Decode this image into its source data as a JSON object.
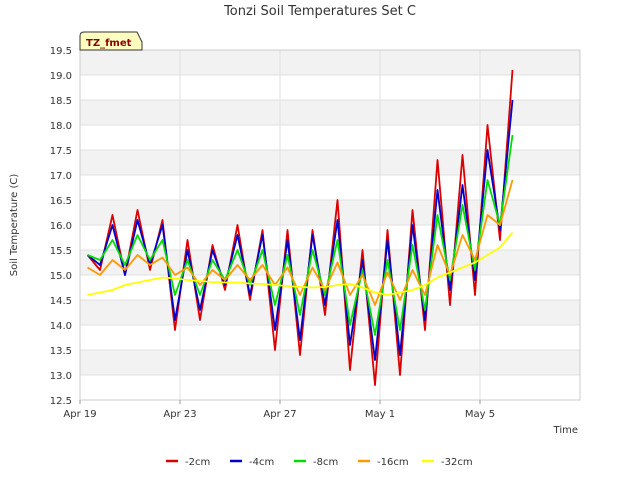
{
  "chart_data": {
    "type": "line",
    "title": "Tonzi Soil Temperatures Set C",
    "xlabel": "Time",
    "ylabel": "Soil Temperature (C)",
    "site_label": "TZ_fmet",
    "xlim": [
      0,
      20
    ],
    "ylim": [
      12.5,
      19.5
    ],
    "yticks": [
      12.5,
      13.0,
      13.5,
      14.0,
      14.5,
      15.0,
      15.5,
      16.0,
      16.5,
      17.0,
      17.5,
      18.0,
      18.5,
      19.0,
      19.5
    ],
    "ytick_labels": [
      "12.5",
      "13.0",
      "13.5",
      "14.0",
      "14.5",
      "15.0",
      "15.5",
      "16.0",
      "16.5",
      "17.0",
      "17.5",
      "18.0",
      "18.5",
      "19.0",
      "19.5"
    ],
    "xticks": [
      0,
      4,
      8,
      12,
      16
    ],
    "xtick_labels": [
      "Apr 19",
      "Apr 23",
      "Apr 27",
      "May 1",
      "May 5"
    ],
    "grid": true,
    "legend_position": "bottom",
    "x": [
      0.3,
      0.8,
      1.3,
      1.8,
      2.3,
      2.8,
      3.3,
      3.8,
      4.3,
      4.8,
      5.3,
      5.8,
      6.3,
      6.8,
      7.3,
      7.8,
      8.3,
      8.8,
      9.3,
      9.8,
      10.3,
      10.8,
      11.3,
      11.8,
      12.3,
      12.8,
      13.3,
      13.8,
      14.3,
      14.8,
      15.3,
      15.8,
      16.3,
      16.8,
      17.3
    ],
    "series": [
      {
        "name": "-2cm",
        "color": "#dd0000",
        "values": [
          15.4,
          15.1,
          16.2,
          15.0,
          16.3,
          15.1,
          16.1,
          13.9,
          15.7,
          14.1,
          15.6,
          14.7,
          16.0,
          14.5,
          15.9,
          13.5,
          15.9,
          13.4,
          15.9,
          14.2,
          16.5,
          13.1,
          15.5,
          12.8,
          15.9,
          13.0,
          16.3,
          13.9,
          17.3,
          14.4,
          17.4,
          14.6,
          18.0,
          15.7,
          19.1
        ]
      },
      {
        "name": "-4cm",
        "color": "#0000cc",
        "values": [
          15.4,
          15.2,
          16.0,
          15.0,
          16.1,
          15.2,
          16.0,
          14.1,
          15.5,
          14.3,
          15.5,
          14.8,
          15.8,
          14.6,
          15.8,
          13.9,
          15.7,
          13.7,
          15.8,
          14.4,
          16.1,
          13.6,
          15.3,
          13.3,
          15.7,
          13.4,
          16.0,
          14.1,
          16.7,
          14.7,
          16.8,
          14.9,
          17.5,
          15.9,
          18.5
        ]
      },
      {
        "name": "-8cm",
        "color": "#00dd00",
        "values": [
          15.4,
          15.3,
          15.7,
          15.2,
          15.8,
          15.3,
          15.7,
          14.6,
          15.3,
          14.6,
          15.3,
          14.9,
          15.5,
          14.8,
          15.5,
          14.4,
          15.4,
          14.2,
          15.5,
          14.6,
          15.7,
          14.0,
          15.1,
          13.8,
          15.3,
          13.9,
          15.6,
          14.3,
          16.2,
          14.9,
          16.4,
          15.1,
          16.9,
          16.0,
          17.8
        ]
      },
      {
        "name": "-16cm",
        "color": "#ff9900",
        "values": [
          15.15,
          15.0,
          15.3,
          15.1,
          15.4,
          15.2,
          15.35,
          15.0,
          15.15,
          14.8,
          15.1,
          14.9,
          15.2,
          14.9,
          15.2,
          14.8,
          15.15,
          14.6,
          15.15,
          14.7,
          15.25,
          14.6,
          15.0,
          14.4,
          15.05,
          14.5,
          15.1,
          14.6,
          15.6,
          15.0,
          15.8,
          15.3,
          16.2,
          16.0,
          16.9
        ]
      },
      {
        "name": "-32cm",
        "color": "#ffff00",
        "values": [
          14.6,
          14.65,
          14.7,
          14.8,
          14.85,
          14.9,
          14.95,
          14.93,
          14.9,
          14.88,
          14.86,
          14.85,
          14.85,
          14.83,
          14.82,
          14.8,
          14.78,
          14.76,
          14.75,
          14.76,
          14.8,
          14.82,
          14.75,
          14.65,
          14.6,
          14.65,
          14.7,
          14.8,
          14.95,
          15.05,
          15.15,
          15.25,
          15.4,
          15.55,
          15.85
        ]
      }
    ]
  }
}
